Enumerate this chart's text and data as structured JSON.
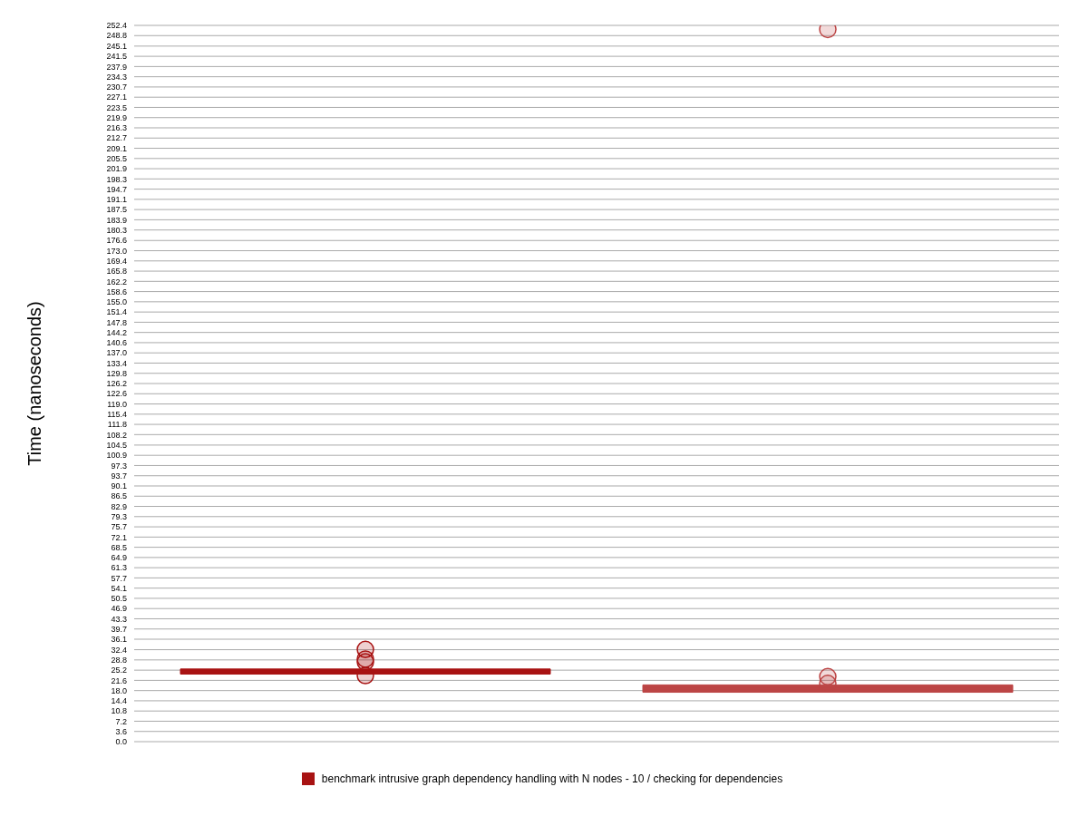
{
  "chart_data": {
    "type": "box",
    "ylabel": "Time (nanoseconds)",
    "categories": [
      null,
      null
    ],
    "tick_labels": "y",
    "grid": "y",
    "legend": "bottom",
    "ylim": [
      0,
      252.4
    ],
    "yticks": [
      {
        "value": 0,
        "label": "0.0"
      },
      3.6,
      7.2,
      10.8,
      14.4,
      {
        "value": 18,
        "label": "18.0"
      },
      21.6,
      25.2,
      28.8,
      32.4,
      36.1,
      39.7,
      43.3,
      46.9,
      50.5,
      54.1,
      57.7,
      61.3,
      64.9,
      68.5,
      72.1,
      75.7,
      79.3,
      82.9,
      86.5,
      90.1,
      93.7,
      97.3,
      100.9,
      104.5,
      108.2,
      111.8,
      115.4,
      {
        "value": 119,
        "label": "119.0"
      },
      122.6,
      126.2,
      129.8,
      133.4,
      {
        "value": 137,
        "label": "137.0"
      },
      140.6,
      144.2,
      147.8,
      151.4,
      {
        "value": 155,
        "label": "155.0"
      },
      158.6,
      162.2,
      165.8,
      169.4,
      {
        "value": 173,
        "label": "173.0"
      },
      176.6,
      180.3,
      183.9,
      187.5,
      191.1,
      194.7,
      198.3,
      201.9,
      205.5,
      209.1,
      212.7,
      216.3,
      219.9,
      223.5,
      227.1,
      230.7,
      234.3,
      237.9,
      241.5,
      245.1,
      248.8,
      252.4
    ],
    "series": [
      {
        "name": "benchmark intrusive graph dependency handling with N nodes - 10 / checking for dependencies",
        "color": "#a81313",
        "boxes": [
          {
            "low": 23.8,
            "q1": 23.8,
            "median": 24.7,
            "q3": 25.6,
            "high": 25.6,
            "outliers": [
              32.5,
              29.1,
              28.1,
              23.3
            ]
          },
          null
        ]
      },
      {
        "color": "#bc4545",
        "boxes": [
          null,
          {
            "low": 17.4,
            "q1": 17.4,
            "median": 18.8,
            "q3": 20.0,
            "high": 20.0,
            "outliers": [
              251.0,
              22.9,
              20.5
            ]
          }
        ]
      }
    ]
  }
}
